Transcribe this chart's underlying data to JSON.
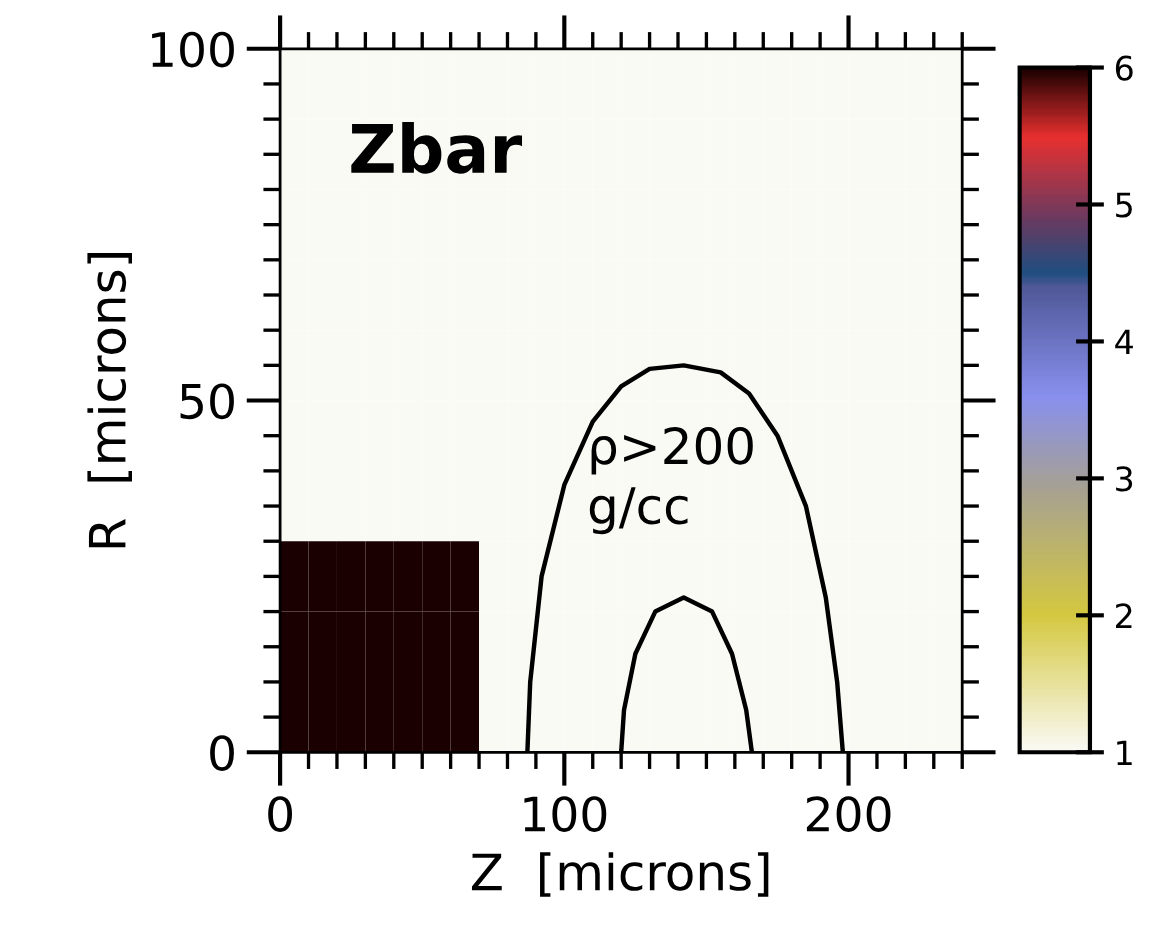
{
  "chart_data": {
    "type": "heatmap",
    "title": "Zbar",
    "xlabel": "Z  [microns]",
    "ylabel": "R  [microns]",
    "x": [
      5,
      15,
      25,
      35,
      45,
      55,
      65,
      75,
      85,
      95,
      105,
      115,
      125,
      135,
      145,
      155,
      165,
      175,
      185,
      195,
      205,
      215,
      225,
      235
    ],
    "y": [
      95,
      85,
      75,
      65,
      55,
      45,
      35,
      25,
      15,
      5
    ],
    "cells": [
      [
        1,
        1,
        1,
        1,
        1,
        1,
        1,
        1,
        1,
        1,
        1,
        1,
        1,
        1,
        1,
        1,
        1,
        1,
        1,
        1,
        1,
        1,
        1,
        1
      ],
      [
        1,
        1,
        1,
        1,
        1,
        1,
        1,
        1,
        1,
        1,
        1,
        1,
        1,
        1,
        1,
        1,
        1,
        1,
        1,
        1,
        1,
        1,
        1,
        1
      ],
      [
        1,
        1,
        1,
        1,
        1,
        1,
        1,
        1,
        1,
        1,
        1,
        1,
        1,
        1,
        1,
        1,
        1,
        1,
        1,
        1,
        1,
        1,
        1,
        1
      ],
      [
        1,
        1,
        1,
        1,
        1,
        1,
        1,
        1,
        1,
        1,
        1,
        1,
        1,
        1,
        1,
        1,
        1,
        1,
        1,
        1,
        1,
        1,
        1,
        1
      ],
      [
        1,
        1,
        1,
        1,
        1,
        1,
        1,
        1,
        1,
        1,
        1,
        1,
        1,
        1,
        1,
        1,
        1,
        1,
        1,
        1,
        1,
        1,
        1,
        1
      ],
      [
        1,
        1,
        1,
        1,
        1,
        1,
        1,
        1,
        1,
        1,
        1,
        1,
        1,
        1,
        1,
        1,
        1,
        1,
        1,
        1,
        1,
        1,
        1,
        1
      ],
      [
        1,
        1,
        1,
        1,
        1,
        1,
        1,
        1,
        1,
        1,
        1,
        1,
        1,
        1,
        1,
        1,
        1,
        1,
        1,
        1,
        1,
        1,
        1,
        1
      ],
      [
        6,
        6,
        6,
        6,
        6,
        6,
        6,
        1,
        1,
        1,
        1,
        1,
        1,
        1,
        1,
        1,
        1,
        1,
        1,
        1,
        1,
        1,
        1,
        1
      ],
      [
        6,
        6,
        6,
        6,
        6,
        6,
        6,
        1,
        1,
        1,
        1,
        1,
        1,
        1,
        1,
        1,
        1,
        1,
        1,
        1,
        1,
        1,
        1,
        1
      ],
      [
        6,
        6,
        6,
        6,
        6,
        6,
        6,
        1,
        1,
        1,
        1,
        1,
        1,
        1,
        1,
        1,
        1,
        1,
        1,
        1,
        1,
        1,
        1,
        1
      ]
    ],
    "series": [
      {
        "type": "line",
        "color": "#000000",
        "x": [
          87,
          88,
          92,
          100,
          110,
          120,
          130,
          142,
          155,
          165,
          175,
          185,
          192,
          196,
          198
        ],
        "values": [
          0,
          10,
          25,
          38,
          47,
          52,
          54.5,
          55,
          54,
          51,
          45,
          35,
          22,
          10,
          0
        ]
      },
      {
        "type": "line",
        "color": "#000000",
        "x": [
          120,
          121,
          125,
          132,
          142,
          152,
          159,
          164,
          166
        ],
        "values": [
          0,
          6,
          14,
          20,
          22,
          20,
          14,
          6,
          0
        ]
      }
    ],
    "annotations": [
      "ρ>200\ng/cc"
    ],
    "xlim": [
      0,
      240
    ],
    "ylim": [
      0,
      100
    ],
    "xticks": [
      0,
      100,
      200
    ],
    "yticks": [
      0,
      50,
      100
    ],
    "clim": [
      1,
      6
    ],
    "cticks": [
      1,
      2,
      3,
      4,
      5,
      6
    ],
    "grid": false
  }
}
